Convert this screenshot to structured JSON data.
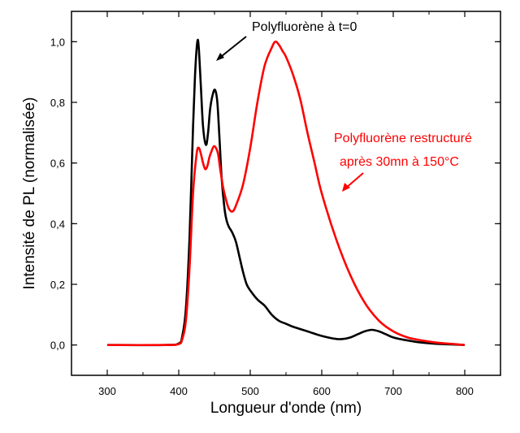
{
  "chart_data": {
    "type": "line",
    "title": "",
    "xlabel": "Longueur d'onde (nm)",
    "ylabel": "Intensité de PL (normalisée)",
    "xlim": [
      250,
      850
    ],
    "ylim": [
      -0.1,
      1.1
    ],
    "xticks": [
      300,
      400,
      500,
      600,
      700,
      800
    ],
    "xtick_labels": [
      "300",
      "400",
      "500",
      "600",
      "700",
      "800"
    ],
    "yticks": [
      0.0,
      0.2,
      0.4,
      0.6,
      0.8,
      1.0
    ],
    "ytick_labels": [
      "0,0",
      "0,2",
      "0,4",
      "0,6",
      "0,8",
      "1,0"
    ],
    "grid": false,
    "series": [
      {
        "color": "#000000",
        "x": [
          300,
          380,
          400,
          405,
          410,
          415,
          420,
          423,
          426,
          428,
          431,
          434,
          438,
          441,
          444,
          448,
          451,
          454,
          457,
          460,
          464,
          467,
          470,
          475,
          480,
          485,
          490,
          495,
          500,
          510,
          520,
          530,
          540,
          550,
          560,
          580,
          600,
          620,
          630,
          640,
          650,
          660,
          670,
          680,
          690,
          700,
          720,
          740,
          760,
          780,
          800
        ],
        "y": [
          0.0,
          0.0,
          0.005,
          0.03,
          0.12,
          0.35,
          0.72,
          0.9,
          1.0,
          0.98,
          0.85,
          0.72,
          0.66,
          0.7,
          0.78,
          0.83,
          0.84,
          0.8,
          0.68,
          0.55,
          0.45,
          0.41,
          0.39,
          0.37,
          0.34,
          0.29,
          0.24,
          0.2,
          0.18,
          0.15,
          0.13,
          0.1,
          0.08,
          0.07,
          0.06,
          0.045,
          0.03,
          0.02,
          0.02,
          0.025,
          0.035,
          0.045,
          0.05,
          0.045,
          0.035,
          0.025,
          0.015,
          0.008,
          0.004,
          0.002,
          0.0
        ]
      },
      {
        "color": "#ff0000",
        "x": [
          300,
          380,
          400,
          405,
          410,
          415,
          420,
          425,
          428,
          431,
          434,
          437,
          440,
          443,
          446,
          449,
          452,
          455,
          458,
          462,
          466,
          470,
          475,
          480,
          490,
          500,
          510,
          520,
          530,
          535,
          540,
          545,
          550,
          560,
          570,
          580,
          590,
          600,
          620,
          640,
          660,
          680,
          700,
          720,
          740,
          760,
          780,
          800
        ],
        "y": [
          0.0,
          0.0,
          0.003,
          0.02,
          0.08,
          0.25,
          0.5,
          0.63,
          0.65,
          0.63,
          0.6,
          0.58,
          0.59,
          0.62,
          0.64,
          0.655,
          0.65,
          0.63,
          0.58,
          0.52,
          0.48,
          0.45,
          0.44,
          0.46,
          0.53,
          0.65,
          0.8,
          0.92,
          0.98,
          1.0,
          0.99,
          0.97,
          0.95,
          0.89,
          0.81,
          0.7,
          0.6,
          0.5,
          0.35,
          0.23,
          0.14,
          0.08,
          0.045,
          0.025,
          0.015,
          0.008,
          0.004,
          0.0
        ]
      }
    ],
    "annotations": [
      {
        "text": "Polyfluorène à t=0",
        "color": "#000000"
      },
      {
        "text": "Polyfluorène restructuré",
        "color": "#ff0000"
      },
      {
        "text": "après 30mn à 150°C",
        "color": "#ff0000"
      }
    ]
  }
}
